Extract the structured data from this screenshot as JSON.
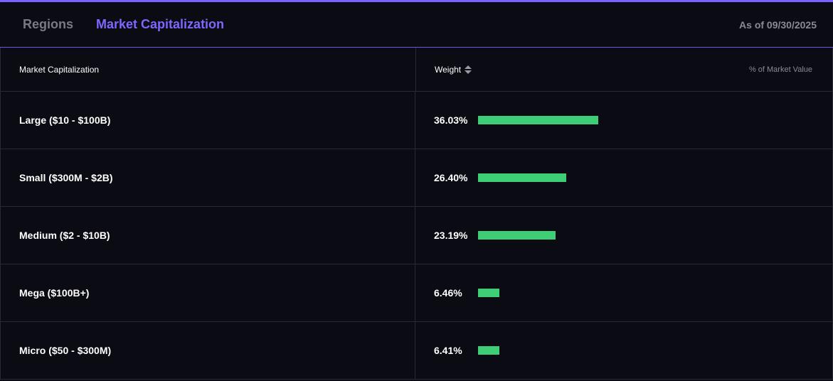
{
  "tabs": [
    {
      "label": "Regions",
      "active": false
    },
    {
      "label": "Market Capitalization",
      "active": true
    }
  ],
  "as_of": "As of 09/30/2025",
  "table": {
    "col1_header": "Market Capitalization",
    "col2_header": "Weight",
    "col2_note": "% of Market Value",
    "rows": [
      {
        "label": "Large ($10 - $100B)",
        "weight": "36.03%",
        "value": 36.03
      },
      {
        "label": "Small ($300M - $2B)",
        "weight": "26.40%",
        "value": 26.4
      },
      {
        "label": "Medium ($2 - $10B)",
        "weight": "23.19%",
        "value": 23.19
      },
      {
        "label": "Mega ($100B+)",
        "weight": "6.46%",
        "value": 6.46
      },
      {
        "label": "Micro ($50 - $300M)",
        "weight": "6.41%",
        "value": 6.41
      }
    ]
  },
  "colors": {
    "accent": "#7f66ff",
    "bar": "#3ecf76",
    "background": "#0b0b13"
  },
  "icons": {
    "sort": "sort-updown-icon"
  }
}
